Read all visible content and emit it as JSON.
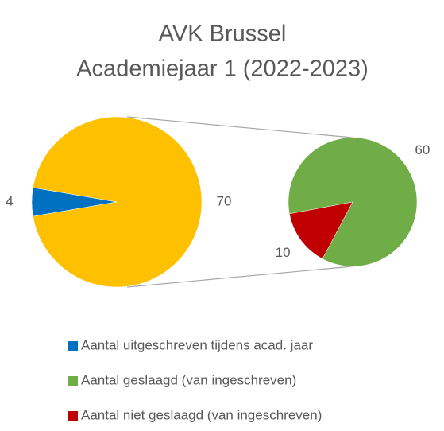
{
  "chart_data": {
    "type": "pie-of-pie",
    "title": [
      "AVK Brussel",
      "Academiejaar 1 (2022-2023)"
    ],
    "main": [
      {
        "name": "Aantal uitgeschreven tijdens acad. jaar",
        "color": "#0070c0",
        "value": 4
      },
      {
        "color": "#ffc000",
        "value": 70
      }
    ],
    "secondary": [
      {
        "name": "Aantal geslaagd (van ingeschreven)",
        "color": "#70ad47",
        "value": 60
      },
      {
        "name": "Aantal niet geslaagd (van ingeschreven)",
        "color": "#c00000",
        "value": 10
      }
    ],
    "legend": "bottom"
  }
}
